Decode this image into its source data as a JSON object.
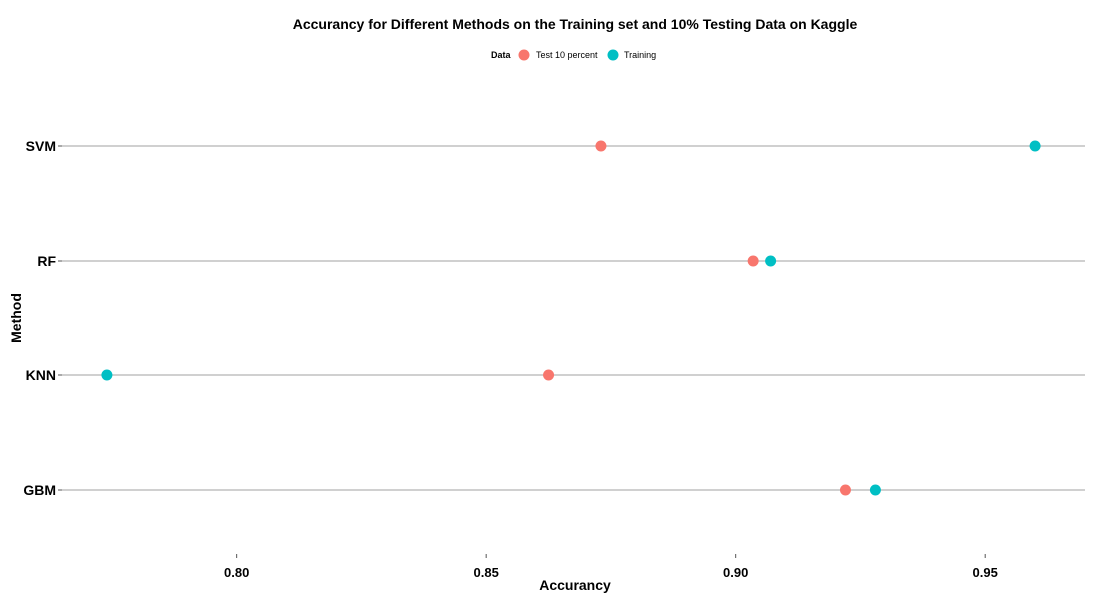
{
  "chart_data": {
    "type": "scatter",
    "title": "Accurancy for Different Methods on the Training set and 10% Testing Data on Kaggle",
    "xlabel": "Accurancy",
    "ylabel": "Method",
    "categories": [
      "GBM",
      "KNN",
      "RF",
      "SVM"
    ],
    "xlim": [
      0.765,
      0.97
    ],
    "x_ticks": [
      0.8,
      0.85,
      0.9,
      0.95
    ],
    "x_tick_labels": [
      "0.80",
      "0.85",
      "0.90",
      "0.95"
    ],
    "grid": "horizontal lines at each category",
    "legend": {
      "title": "Data",
      "position": "top"
    },
    "series": [
      {
        "name": "Test 10 percent",
        "color": "#F8766D",
        "values": [
          0.922,
          0.8625,
          0.9035,
          0.873
        ]
      },
      {
        "name": "Training",
        "color": "#00BFC4",
        "values": [
          0.928,
          0.774,
          0.907,
          0.96
        ]
      }
    ]
  }
}
